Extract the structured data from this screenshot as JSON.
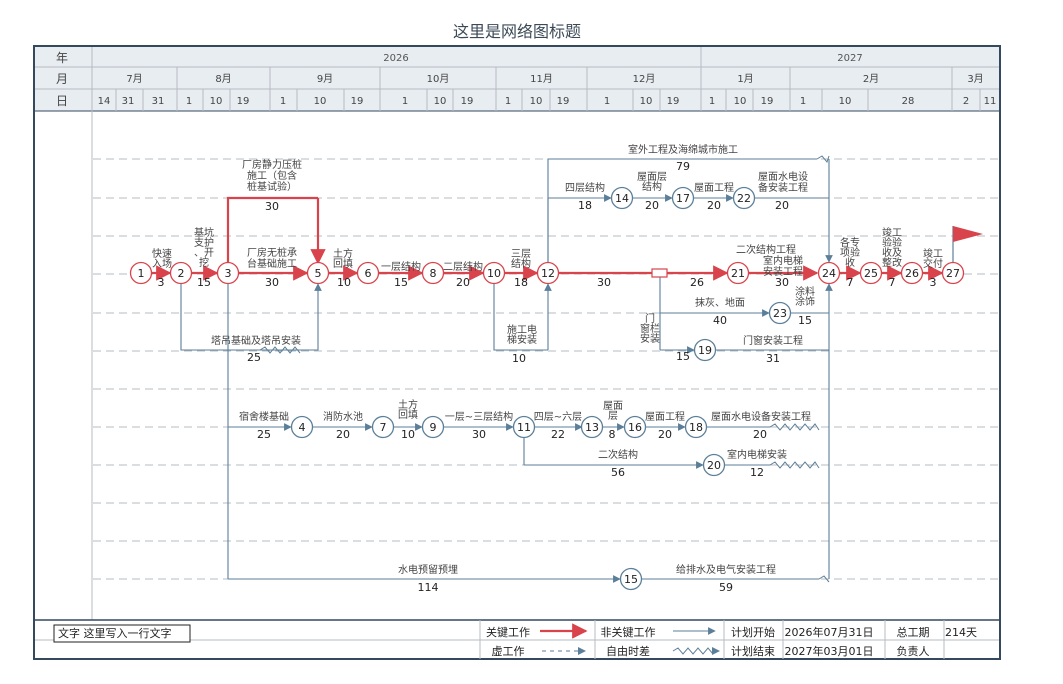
{
  "title": "这里是网络图标题",
  "colors": {
    "critical": "#d9434b",
    "normal": "#5b7f99",
    "border": "#34495e",
    "header_bg": "#e8edf1",
    "grid": "#b7bcc2"
  },
  "timeline": {
    "row_labels": [
      "年",
      "月",
      "日"
    ],
    "years": [
      "2026",
      "2027"
    ],
    "months": [
      "7月",
      "8月",
      "9月",
      "10月",
      "11月",
      "12月",
      "1月",
      "2月",
      "3月"
    ],
    "days": [
      "14",
      "31",
      "31",
      "1",
      "10",
      "19",
      "1",
      "10",
      "19",
      "1",
      "10",
      "19",
      "1",
      "10",
      "19",
      "1",
      "10",
      "19",
      "1",
      "10",
      "19",
      "1",
      "10",
      "28",
      "2",
      "11"
    ]
  },
  "nodes": [
    "1",
    "2",
    "3",
    "5",
    "6",
    "8",
    "10",
    "12",
    "14",
    "17",
    "22",
    "21",
    "24",
    "25",
    "26",
    "27",
    "23",
    "19",
    "4",
    "7",
    "9",
    "11",
    "13",
    "16",
    "18",
    "20",
    "15"
  ],
  "activities": [
    {
      "label": "快速\n入场",
      "duration": "3",
      "critical": true
    },
    {
      "label": "基坑\n支护\n、开\n挖",
      "duration": "15",
      "critical": true
    },
    {
      "label": "厂房静力压桩\n施工（包含\n桩基试验）",
      "duration": "30",
      "critical": true
    },
    {
      "label": "厂房无桩承\n台基础施工",
      "duration": "30",
      "critical": true
    },
    {
      "label": "土方\n回填",
      "duration": "10",
      "critical": true
    },
    {
      "label": "一层结构",
      "duration": "15",
      "critical": true
    },
    {
      "label": "二层结构",
      "duration": "20",
      "critical": true
    },
    {
      "label": "三层\n结构",
      "duration": "18",
      "critical": true
    },
    {
      "label": "",
      "duration": "30",
      "critical": true
    },
    {
      "label": "二次结构工程",
      "duration": "26",
      "critical": true
    },
    {
      "label": "室内电梯\n安装工程",
      "duration": "30",
      "critical": true
    },
    {
      "label": "各专\n项验\n收",
      "duration": "7",
      "critical": true
    },
    {
      "label": "竣工\n验验\n收及\n整改",
      "duration": "7",
      "critical": true
    },
    {
      "label": "竣工\n交付",
      "duration": "3",
      "critical": true
    },
    {
      "label": "塔吊基础及塔吊安装",
      "duration": "25",
      "critical": false
    },
    {
      "label": "施工电\n梯安装",
      "duration": "10",
      "critical": false
    },
    {
      "label": "室外工程及海绵城市施工",
      "duration": "79",
      "critical": false
    },
    {
      "label": "四层结构",
      "duration": "18",
      "critical": false
    },
    {
      "label": "屋面层\n结构",
      "duration": "20",
      "critical": false
    },
    {
      "label": "屋面工程",
      "duration": "20",
      "critical": false
    },
    {
      "label": "屋面水电设\n备安装工程",
      "duration": "20",
      "critical": false
    },
    {
      "label": "抹灰、地面",
      "duration": "40",
      "critical": false
    },
    {
      "label": "涂料\n涂饰",
      "duration": "15",
      "critical": false
    },
    {
      "label": "门\n窗栏\n安装",
      "duration": "15",
      "critical": false
    },
    {
      "label": "门窗安装工程",
      "duration": "31",
      "critical": false
    },
    {
      "label": "宿舍楼基础",
      "duration": "25",
      "critical": false
    },
    {
      "label": "消防水池",
      "duration": "20",
      "critical": false
    },
    {
      "label": "土方\n回填",
      "duration": "10",
      "critical": false
    },
    {
      "label": "一层~三层结构",
      "duration": "30",
      "critical": false
    },
    {
      "label": "四层~六层",
      "duration": "22",
      "critical": false
    },
    {
      "label": "屋面\n层",
      "duration": "8",
      "critical": false
    },
    {
      "label": "屋面工程",
      "duration": "20",
      "critical": false
    },
    {
      "label": "屋面水电设备安装工程",
      "duration": "20",
      "critical": false
    },
    {
      "label": "二次结构",
      "duration": "56",
      "critical": false
    },
    {
      "label": "室内电梯安装",
      "duration": "12",
      "critical": false
    },
    {
      "label": "水电预留预埋",
      "duration": "114",
      "critical": false
    },
    {
      "label": "给排水及电气安装工程",
      "duration": "59",
      "critical": false
    }
  ],
  "footer": {
    "note": "文字 这里写入一行文字",
    "legend_critical": "关键工作",
    "legend_noncritical": "非关键工作",
    "legend_dummy": "虚工作",
    "legend_float": "自由时差",
    "plan_start_label": "计划开始",
    "plan_start_value": "2026年07月31日",
    "plan_end_label": "计划结束",
    "plan_end_value": "2027年03月01日",
    "total_label": "总工期",
    "total_value": "214天",
    "owner_label": "负责人",
    "owner_value": ""
  }
}
